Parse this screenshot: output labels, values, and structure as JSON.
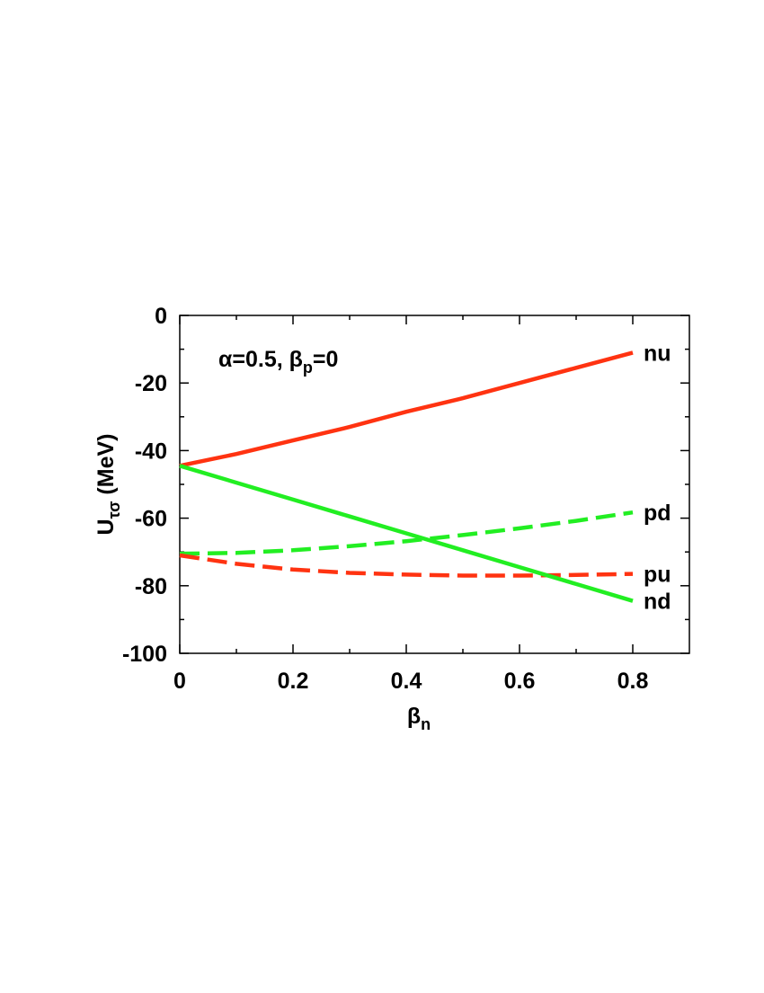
{
  "chart_data": {
    "type": "line",
    "annotation": [
      "α=0.5, β",
      "p",
      "=0"
    ],
    "ylabel": [
      "U",
      "τσ",
      " (MeV)"
    ],
    "xlabel": [
      "β",
      "n"
    ],
    "x": [
      0,
      0.1,
      0.2,
      0.3,
      0.4,
      0.5,
      0.6,
      0.7,
      0.8
    ],
    "series": [
      {
        "name": "nu",
        "color": "#ff3311",
        "dashed": false,
        "values": [
          -44.5,
          -41,
          -37,
          -33,
          -28.5,
          -24.5,
          -20,
          -15.5,
          -11
        ]
      },
      {
        "name": "pd",
        "color": "#22ee22",
        "dashed": true,
        "values": [
          -70.5,
          -70.3,
          -69.5,
          -68.3,
          -66.8,
          -65,
          -63,
          -60.8,
          -58.3
        ]
      },
      {
        "name": "pu",
        "color": "#ff3311",
        "dashed": true,
        "values": [
          -71,
          -73.5,
          -75.2,
          -76.2,
          -76.7,
          -77,
          -77,
          -76.8,
          -76.5
        ]
      },
      {
        "name": "nd",
        "color": "#22ee22",
        "dashed": false,
        "values": [
          -44.5,
          -49.5,
          -54.5,
          -59.5,
          -64.5,
          -69.5,
          -74.5,
          -79.5,
          -84.5
        ]
      }
    ],
    "xlim": [
      0,
      0.9
    ],
    "ylim": [
      -100,
      0
    ],
    "xticks": [
      0,
      0.2,
      0.4,
      0.6,
      0.8
    ],
    "xminorticks": [
      0.1,
      0.3,
      0.5,
      0.7
    ],
    "yticks": [
      0,
      -20,
      -40,
      -60,
      -80,
      -100
    ],
    "yminorticks": [
      -10,
      -30,
      -50,
      -70,
      -90
    ]
  }
}
